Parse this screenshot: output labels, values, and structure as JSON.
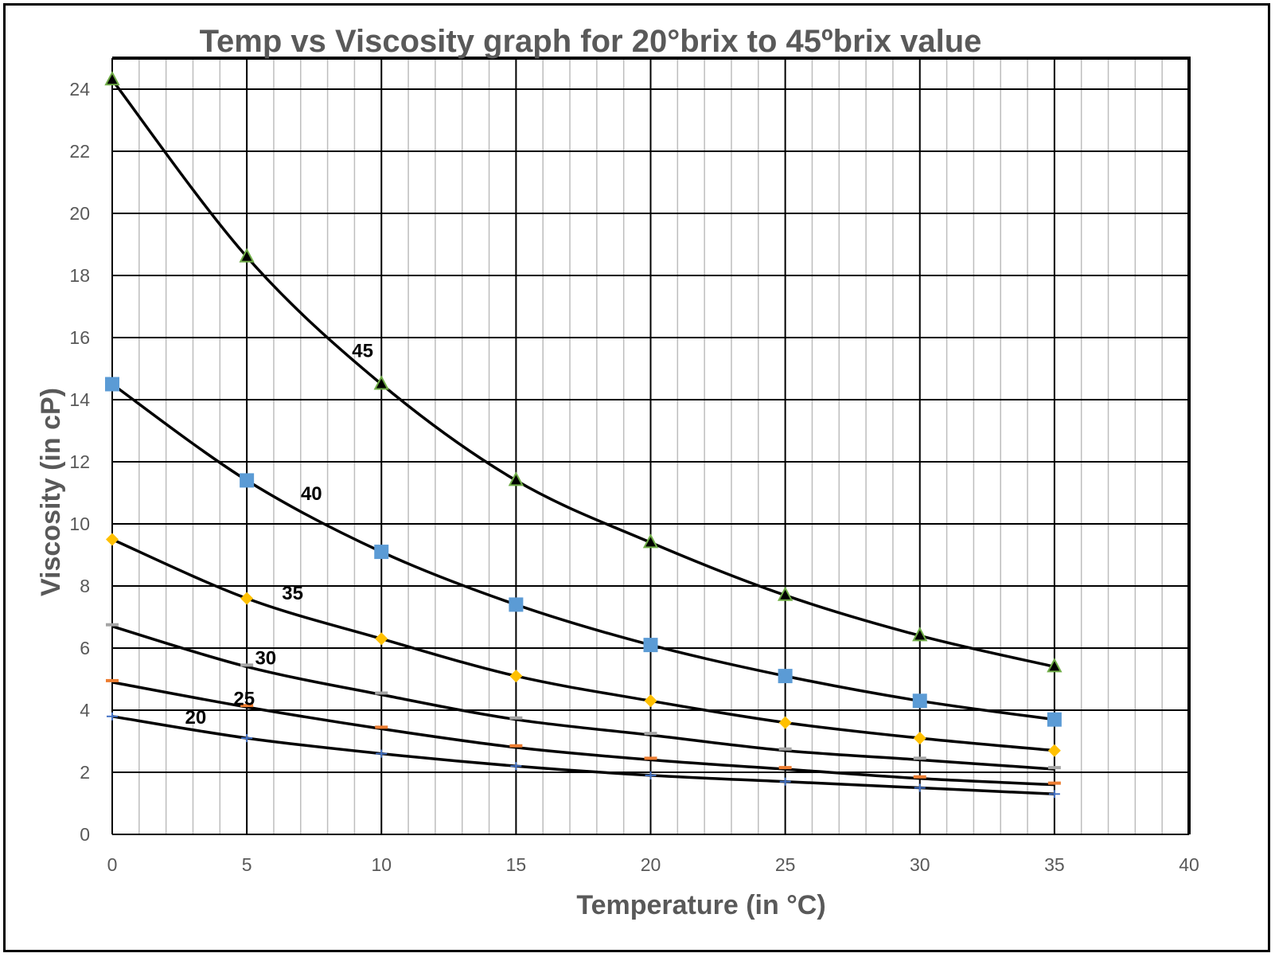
{
  "chart_data": {
    "type": "line",
    "title": "Temp vs Viscosity graph for  20°brix to 45ºbrix value",
    "xlabel": "Temperature (in  °C)",
    "ylabel": "Viscosity (in  cP)",
    "xlim": [
      0,
      40
    ],
    "ylim": [
      0,
      25
    ],
    "x_ticks": [
      0,
      5,
      10,
      15,
      20,
      25,
      30,
      35,
      40
    ],
    "y_ticks": [
      0,
      2,
      4,
      6,
      8,
      10,
      12,
      14,
      16,
      18,
      20,
      22,
      24
    ],
    "x_minor_step": 1,
    "grid": true,
    "legend": "none (series labelled inline)",
    "x": [
      0,
      5,
      10,
      15,
      20,
      25,
      30,
      35
    ],
    "series": [
      {
        "name": "45",
        "marker": "triangle",
        "color": "#70AD47",
        "label_at": [
          9.3,
          15.6
        ],
        "values": [
          24.3,
          18.6,
          14.5,
          11.4,
          9.4,
          7.7,
          6.4,
          5.4
        ]
      },
      {
        "name": "40",
        "marker": "square",
        "color": "#5B9BD5",
        "label_at": [
          7.4,
          11.0
        ],
        "values": [
          14.5,
          11.4,
          9.1,
          7.4,
          6.1,
          5.1,
          4.3,
          3.7
        ]
      },
      {
        "name": "35",
        "marker": "diamond",
        "color": "#FFC000",
        "label_at": [
          6.7,
          7.8
        ],
        "values": [
          9.5,
          7.6,
          6.3,
          5.1,
          4.3,
          3.6,
          3.1,
          2.7
        ]
      },
      {
        "name": "30",
        "marker": "dash",
        "color": "#A5A5A5",
        "label_at": [
          5.7,
          5.7
        ],
        "values": [
          6.7,
          5.4,
          4.5,
          3.7,
          3.2,
          2.7,
          2.4,
          2.1
        ]
      },
      {
        "name": "25",
        "marker": "dash",
        "color": "#ED7D31",
        "label_at": [
          4.9,
          4.4
        ],
        "values": [
          4.9,
          4.1,
          3.4,
          2.8,
          2.4,
          2.1,
          1.8,
          1.6
        ]
      },
      {
        "name": "20",
        "marker": "plus",
        "color": "#4472C4",
        "label_at": [
          3.1,
          3.8
        ],
        "values": [
          3.8,
          3.1,
          2.6,
          2.2,
          1.9,
          1.7,
          1.5,
          1.3
        ]
      }
    ]
  }
}
